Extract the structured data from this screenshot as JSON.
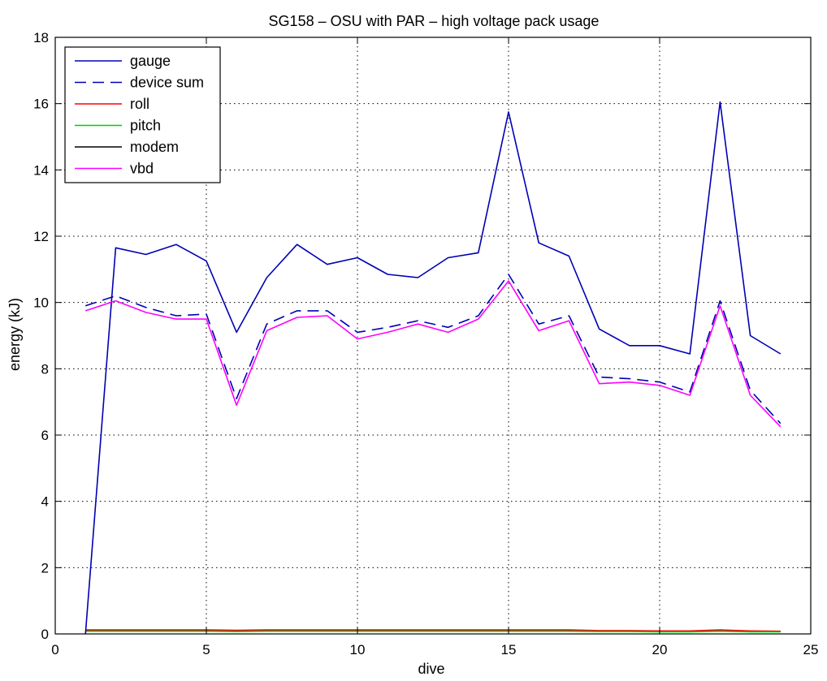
{
  "chart_data": {
    "type": "line",
    "title": "SG158 – OSU with PAR – high voltage pack usage",
    "xlabel": "dive",
    "ylabel": "energy (kJ)",
    "xlim": [
      0,
      25
    ],
    "ylim": [
      0,
      18
    ],
    "xticks": [
      0,
      5,
      10,
      15,
      20,
      25
    ],
    "yticks": [
      0,
      2,
      4,
      6,
      8,
      10,
      12,
      14,
      16,
      18
    ],
    "grid": true,
    "legend_position": "top-left",
    "x": [
      1,
      2,
      3,
      4,
      5,
      6,
      7,
      8,
      9,
      10,
      11,
      12,
      13,
      14,
      15,
      16,
      17,
      18,
      19,
      20,
      21,
      22,
      23,
      24
    ],
    "series": [
      {
        "name": "gauge",
        "color": "#0000b4",
        "style": "solid",
        "values": [
          0,
          11.65,
          11.45,
          11.75,
          11.25,
          9.1,
          10.75,
          11.75,
          11.15,
          11.35,
          10.85,
          10.75,
          11.35,
          11.5,
          15.75,
          11.8,
          11.4,
          9.2,
          8.7,
          8.7,
          8.45,
          16.05,
          9.0,
          8.45
        ]
      },
      {
        "name": "device sum",
        "color": "#0000b4",
        "style": "dashed",
        "values": [
          9.9,
          10.2,
          9.85,
          9.6,
          9.65,
          7.1,
          9.35,
          9.75,
          9.75,
          9.1,
          9.25,
          9.45,
          9.25,
          9.6,
          10.85,
          9.35,
          9.6,
          7.75,
          7.7,
          7.6,
          7.3,
          10.05,
          7.35,
          6.35
        ]
      },
      {
        "name": "roll",
        "color": "#ff0000",
        "style": "solid",
        "values": [
          0.12,
          0.12,
          0.12,
          0.12,
          0.12,
          0.11,
          0.12,
          0.12,
          0.12,
          0.12,
          0.12,
          0.12,
          0.12,
          0.12,
          0.12,
          0.12,
          0.12,
          0.1,
          0.1,
          0.09,
          0.09,
          0.12,
          0.09,
          0.08
        ]
      },
      {
        "name": "pitch",
        "color": "#00cc00",
        "style": "solid",
        "values": [
          0.08,
          0.08,
          0.08,
          0.08,
          0.08,
          0.07,
          0.08,
          0.08,
          0.08,
          0.08,
          0.08,
          0.08,
          0.08,
          0.08,
          0.08,
          0.08,
          0.08,
          0.07,
          0.07,
          0.06,
          0.06,
          0.08,
          0.06,
          0.06
        ]
      },
      {
        "name": "modem",
        "color": "#000000",
        "style": "solid",
        "values": [
          0.1,
          0.1,
          0.1,
          0.1,
          0.1,
          0.09,
          0.1,
          0.1,
          0.1,
          0.1,
          0.1,
          0.1,
          0.1,
          0.1,
          0.1,
          0.1,
          0.1,
          0.08,
          0.08,
          0.08,
          0.08,
          0.1,
          0.08,
          0.07
        ]
      },
      {
        "name": "vbd",
        "color": "#ff00ff",
        "style": "solid",
        "values": [
          9.75,
          10.05,
          9.7,
          9.5,
          9.5,
          6.9,
          9.15,
          9.55,
          9.6,
          8.9,
          9.1,
          9.35,
          9.1,
          9.5,
          10.65,
          9.15,
          9.45,
          7.55,
          7.6,
          7.5,
          7.2,
          9.9,
          7.2,
          6.25
        ]
      }
    ]
  }
}
